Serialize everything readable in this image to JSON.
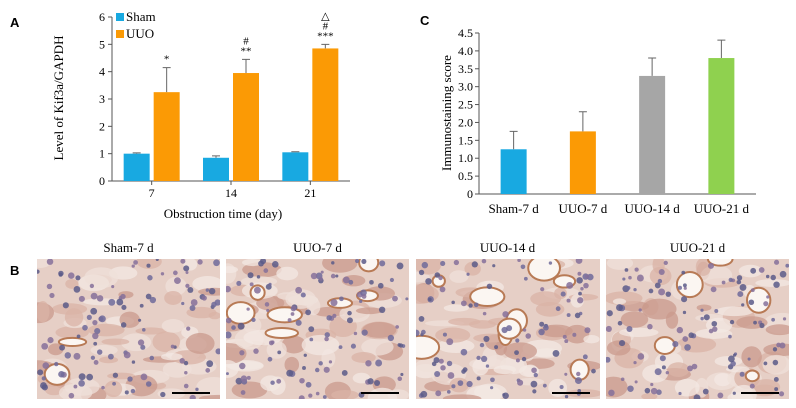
{
  "panels": {
    "a": "A",
    "b": "B",
    "c": "C"
  },
  "chart_data": [
    {
      "type": "bar",
      "panel": "A",
      "categories": [
        "7",
        "14",
        "21"
      ],
      "xlabel": "Obstruction time (day)",
      "ylabel": "Level of Kif3a/GAPDH",
      "ylim": [
        0,
        6
      ],
      "yticks": [
        "0",
        "1",
        "2",
        "3",
        "4",
        "5",
        "6"
      ],
      "legend_position": "top-left",
      "grid": false,
      "series": [
        {
          "name": "Sham",
          "color": "#18a9e1",
          "values": [
            1.0,
            0.85,
            1.05
          ],
          "errors": [
            0.03,
            0.07,
            0.02
          ],
          "annotations": [
            "",
            "",
            ""
          ]
        },
        {
          "name": "UUO",
          "color": "#fb9a05",
          "values": [
            3.25,
            3.95,
            4.85
          ],
          "errors": [
            0.9,
            0.5,
            0.15
          ],
          "annotations": [
            [
              "*"
            ],
            [
              "**",
              "#"
            ],
            [
              "***",
              "#",
              "△"
            ]
          ]
        }
      ]
    },
    {
      "type": "bar",
      "panel": "C",
      "categories": [
        "Sham-7 d",
        "UUO-7 d",
        "UUO-14 d",
        "UUO-21 d"
      ],
      "ylabel": "Immunostaining score",
      "ylim": [
        0,
        4.5
      ],
      "yticks": [
        "0",
        "0.5",
        "1.0",
        "1.5",
        "2.0",
        "2.5",
        "3.0",
        "3.5",
        "4.0",
        "4.5"
      ],
      "grid": false,
      "values": [
        1.25,
        1.75,
        3.3,
        3.8
      ],
      "errors": [
        0.5,
        0.55,
        0.5,
        0.5
      ],
      "colors": [
        "#18a9e1",
        "#fb9a05",
        "#a6a6a6",
        "#8fd14f"
      ]
    }
  ],
  "micrographs": [
    "Sham-7 d",
    "UUO-7 d",
    "UUO-14 d",
    "UUO-21 d"
  ]
}
